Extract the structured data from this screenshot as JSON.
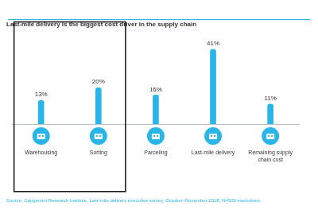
{
  "chart_data": {
    "type": "bar",
    "title": "Last-mile delivery is the biggest cost driver in the supply chain",
    "source": "Source: Capgemini Research Institute, Last-mile delivery executive survey, October–November 2018, N=500 executives.",
    "categories": [
      "Warehousing",
      "Sorting",
      "Parceling",
      "Last-mile delivery",
      "Remaining supply chain cost"
    ],
    "values": [
      13,
      20,
      16,
      41,
      11
    ],
    "value_labels": [
      "13%",
      "20%",
      "16%",
      "41%",
      "11%"
    ],
    "color": "#29b5e8",
    "grid": false,
    "data_labels": true,
    "tick_labels": "x"
  }
}
